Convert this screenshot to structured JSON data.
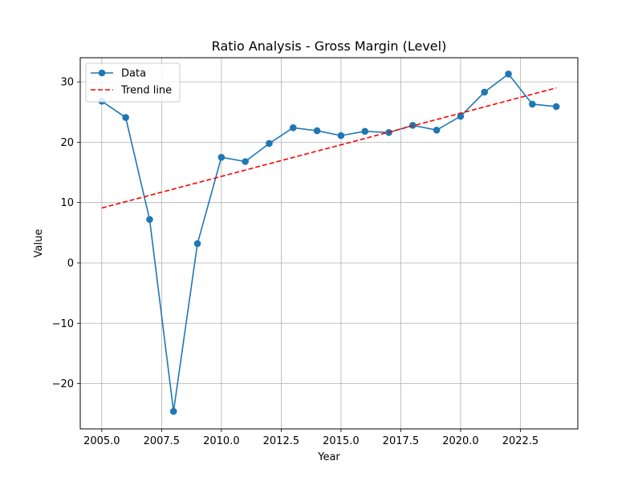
{
  "chart_data": {
    "type": "line",
    "title": "Ratio Analysis - Gross Margin (Level)",
    "xlabel": "Year",
    "ylabel": "Value",
    "xlim": [
      2004.1,
      2024.9
    ],
    "ylim": [
      -27.5,
      34
    ],
    "xticks": [
      2005.0,
      2007.5,
      2010.0,
      2012.5,
      2015.0,
      2017.5,
      2020.0,
      2022.5
    ],
    "xtick_labels": [
      "2005.0",
      "2007.5",
      "2010.0",
      "2012.5",
      "2015.0",
      "2017.5",
      "2020.0",
      "2022.5"
    ],
    "yticks": [
      -20,
      -10,
      0,
      10,
      20,
      30
    ],
    "ytick_labels": [
      "−20",
      "−10",
      "0",
      "10",
      "20",
      "30"
    ],
    "grid": true,
    "legend_position": "top-left",
    "series": [
      {
        "name": "Data",
        "style": "solid-markers",
        "color": "#1f77b4",
        "x": [
          2005,
          2006,
          2007,
          2008,
          2009,
          2010,
          2011,
          2012,
          2013,
          2014,
          2015,
          2016,
          2017,
          2018,
          2019,
          2020,
          2021,
          2022,
          2023,
          2024
        ],
        "y": [
          26.8,
          24.1,
          7.2,
          -24.6,
          3.2,
          17.5,
          16.8,
          19.8,
          22.4,
          21.9,
          21.1,
          21.8,
          21.6,
          22.8,
          22.0,
          24.3,
          28.3,
          31.3,
          26.3,
          25.9
        ]
      },
      {
        "name": "Trend line",
        "style": "dashed",
        "color": "#ff0000",
        "x": [
          2005,
          2024
        ],
        "y": [
          9.1,
          29.0
        ]
      }
    ]
  }
}
